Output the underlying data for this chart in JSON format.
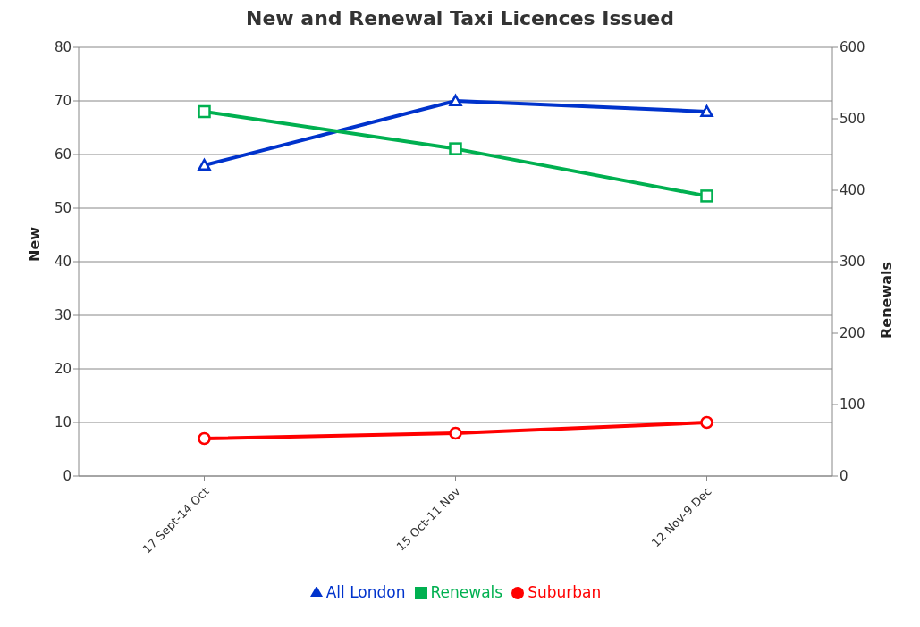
{
  "chart_data": {
    "type": "line",
    "title": "New  and Renewal Taxi Licences Issued",
    "ylabel": "New",
    "y2label": "Renewals",
    "categories": [
      "17 Sept-14 Oct",
      "15 Oct-11 Nov",
      "12 Nov-9 Dec"
    ],
    "series": [
      {
        "name": "All London",
        "color": "#0033cc",
        "values": [
          58,
          70,
          68
        ],
        "marker": "triangle"
      },
      {
        "name": "Suburban",
        "color": "#ff0000",
        "values": [
          7,
          8,
          10
        ],
        "marker": "circle"
      },
      {
        "name": "Renewals",
        "color": "#00b050",
        "values": [
          510,
          458,
          392
        ],
        "marker": "square",
        "axis": "y2"
      }
    ],
    "ylim": [
      0,
      80
    ],
    "yticks": [
      0,
      10,
      20,
      30,
      40,
      50,
      60,
      70,
      80
    ],
    "y2lim": [
      0,
      600
    ],
    "y2ticks": [
      0,
      100,
      200,
      300,
      400,
      500,
      600
    ],
    "grid": "y",
    "legend": "bottom",
    "line_style": "solid"
  }
}
